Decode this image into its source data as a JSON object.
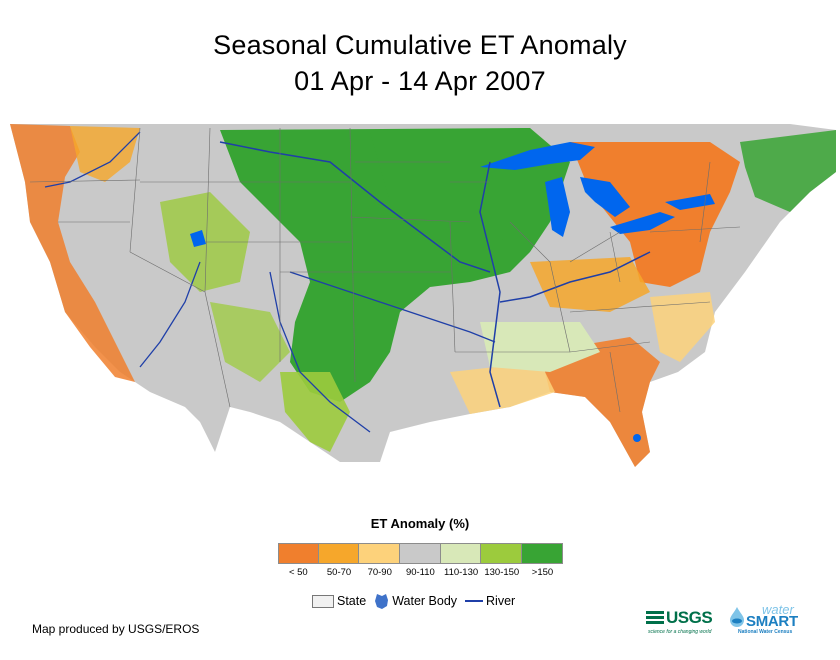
{
  "title": {
    "line1": "Seasonal Cumulative ET Anomaly",
    "line2": "01 Apr - 14 Apr 2007"
  },
  "map": {
    "subject": "Contiguous United States ET anomaly map",
    "regions": [
      {
        "name": "pacific-coast",
        "category": "<50"
      },
      {
        "name": "great-plains-midwest",
        "category": ">150"
      },
      {
        "name": "great-lakes",
        "category": "water"
      },
      {
        "name": "mid-atlantic-pennsylvania",
        "category": "<50"
      },
      {
        "name": "southeast",
        "category": "50-70"
      },
      {
        "name": "florida",
        "category": "<50"
      },
      {
        "name": "intermountain-west",
        "category": "90-110"
      }
    ]
  },
  "legend": {
    "title": "ET Anomaly (%)",
    "classes": [
      {
        "label": "< 50",
        "color": "#f07f2d"
      },
      {
        "label": "50-70",
        "color": "#f6a72b"
      },
      {
        "label": "70-90",
        "color": "#fdd27b"
      },
      {
        "label": "90-110",
        "color": "#c9c9c9"
      },
      {
        "label": "110-130",
        "color": "#d8e8b8"
      },
      {
        "label": "130-150",
        "color": "#9ccb3d"
      },
      {
        "label": ">150",
        "color": "#38a434"
      }
    ],
    "reference": {
      "state": "State",
      "water_body": "Water Body",
      "river": "River"
    }
  },
  "credit": "Map produced by USGS/EROS",
  "logos": {
    "usgs": "USGS",
    "usgs_tagline": "science for a changing world",
    "watersmart_top": "water",
    "watersmart_main": "SMART",
    "watersmart_sub": "National Water Census"
  }
}
